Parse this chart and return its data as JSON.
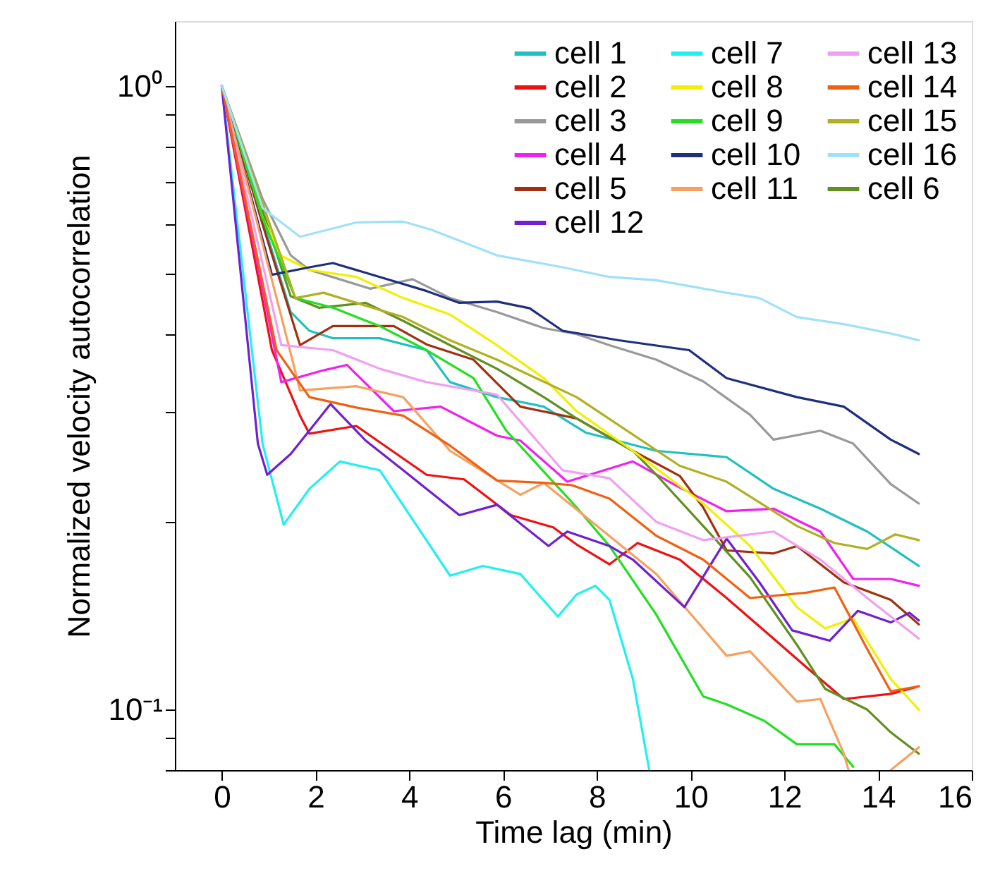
{
  "chart_data": {
    "type": "line",
    "xlabel": "Time lag (min)",
    "ylabel": "Normalized velocity autocorrelation",
    "log": "y",
    "grid": false,
    "legend": "top right",
    "line_style": "solid",
    "marker": "none",
    "xlim": [
      -1,
      16
    ],
    "xticks": [
      0,
      2,
      4,
      6,
      8,
      10,
      12,
      14,
      16
    ],
    "ylim": [
      0.08,
      1.27
    ],
    "yticks": [
      {
        "value": 0.08,
        "label": null
      },
      {
        "value": 0.09,
        "label": null
      },
      {
        "value": 0.1,
        "label": "10⁻¹"
      },
      {
        "value": 0.2,
        "label": null
      },
      {
        "value": 0.3,
        "label": null
      },
      {
        "value": 0.4,
        "label": null
      },
      {
        "value": 0.5,
        "label": null
      },
      {
        "value": 0.6,
        "label": null
      },
      {
        "value": 0.7,
        "label": null
      },
      {
        "value": 0.8,
        "label": null
      },
      {
        "value": 0.9,
        "label": null
      },
      {
        "value": 1,
        "label": "10⁰"
      }
    ],
    "series": [
      {
        "name": "cell 1",
        "color": "#20c0c0",
        "x": [
          0,
          1.47,
          1.87,
          2.37,
          3.37,
          4.37,
          4.87,
          5.87,
          6.87,
          7.77,
          9.27,
          10.77,
          11.77,
          12.77,
          13.77,
          14.87
        ],
        "values": [
          1,
          0.434,
          0.405,
          0.394,
          0.394,
          0.377,
          0.335,
          0.317,
          0.306,
          0.278,
          0.26,
          0.254,
          0.226,
          0.21,
          0.193,
          0.17
        ]
      },
      {
        "name": "cell 2",
        "color": "#f01010",
        "x": [
          0,
          1.07,
          1.67,
          1.87,
          2.87,
          4.37,
          5.17,
          6.17,
          7.07,
          7.57,
          8.27,
          8.87,
          9.77,
          10.77,
          11.77,
          12.47,
          13.27,
          14.27,
          14.87
        ],
        "values": [
          1,
          0.377,
          0.296,
          0.277,
          0.285,
          0.238,
          0.234,
          0.205,
          0.196,
          0.184,
          0.171,
          0.185,
          0.174,
          0.151,
          0.13,
          0.117,
          0.104,
          0.106,
          0.109
        ]
      },
      {
        "name": "cell 3",
        "color": "#999999",
        "x": [
          0,
          0.87,
          1.47,
          1.87,
          3.17,
          4.07,
          4.87,
          5.87,
          6.87,
          7.57,
          8.27,
          9.27,
          10.27,
          11.27,
          11.77,
          12.77,
          13.47,
          14.27,
          14.87
        ],
        "values": [
          1,
          0.659,
          0.535,
          0.507,
          0.473,
          0.49,
          0.457,
          0.434,
          0.409,
          0.4,
          0.384,
          0.364,
          0.336,
          0.297,
          0.271,
          0.28,
          0.267,
          0.23,
          0.214
        ]
      },
      {
        "name": "cell 4",
        "color": "#f020f0",
        "x": [
          0,
          1.27,
          2.17,
          2.67,
          3.67,
          4.67,
          5.87,
          6.37,
          7.37,
          8.77,
          9.77,
          10.77,
          11.77,
          12.77,
          13.47,
          14.27,
          14.87
        ],
        "values": [
          1,
          0.335,
          0.35,
          0.357,
          0.301,
          0.306,
          0.275,
          0.27,
          0.232,
          0.25,
          0.227,
          0.208,
          0.21,
          0.193,
          0.162,
          0.162,
          0.158
        ]
      },
      {
        "name": "cell 5",
        "color": "#a03010",
        "x": [
          0,
          0.87,
          1.67,
          2.37,
          3.67,
          4.37,
          5.37,
          6.37,
          7.57,
          8.77,
          9.77,
          10.27,
          10.77,
          11.77,
          12.27,
          13.27,
          14.27,
          14.87
        ],
        "values": [
          1,
          0.6,
          0.384,
          0.412,
          0.412,
          0.385,
          0.364,
          0.306,
          0.293,
          0.26,
          0.237,
          0.211,
          0.18,
          0.178,
          0.183,
          0.16,
          0.15,
          0.137
        ]
      },
      {
        "name": "cell 6",
        "color": "#609020",
        "x": [
          0,
          1.47,
          2.07,
          3.07,
          3.87,
          4.87,
          5.87,
          6.87,
          7.57,
          8.77,
          9.27,
          10.27,
          11.27,
          12.27,
          12.87,
          13.77,
          14.27,
          14.87
        ],
        "values": [
          1,
          0.46,
          0.441,
          0.449,
          0.42,
          0.384,
          0.352,
          0.317,
          0.293,
          0.26,
          0.238,
          0.197,
          0.163,
          0.127,
          0.108,
          0.1,
          0.092,
          0.085
        ]
      },
      {
        "name": "cell 7",
        "color": "#20f0f0",
        "x": [
          0,
          0.87,
          1.32,
          1.87,
          2.52,
          3.37,
          4.87,
          5.57,
          6.37,
          7.17,
          7.57,
          7.97,
          8.27,
          8.77,
          9.12
        ],
        "values": [
          1,
          0.267,
          0.198,
          0.226,
          0.25,
          0.242,
          0.164,
          0.17,
          0.165,
          0.141,
          0.153,
          0.158,
          0.15,
          0.112,
          0.08
        ]
      },
      {
        "name": "cell 8",
        "color": "#f0f000",
        "x": [
          0,
          0.87,
          1.27,
          1.87,
          2.87,
          3.87,
          4.87,
          5.87,
          6.87,
          7.57,
          8.77,
          10.27,
          11.27,
          12.27,
          12.87,
          13.47,
          14.27,
          14.87
        ],
        "values": [
          1,
          0.614,
          0.534,
          0.507,
          0.494,
          0.457,
          0.43,
          0.384,
          0.34,
          0.301,
          0.26,
          0.214,
          0.183,
          0.146,
          0.135,
          0.14,
          0.112,
          0.1
        ]
      },
      {
        "name": "cell 9",
        "color": "#20e020",
        "x": [
          0,
          0.87,
          1.57,
          2.37,
          3.37,
          4.37,
          5.37,
          6.07,
          7.57,
          8.27,
          9.27,
          10.27,
          10.77,
          11.57,
          12.27,
          13.07,
          13.47
        ],
        "values": [
          1,
          0.614,
          0.457,
          0.441,
          0.412,
          0.377,
          0.34,
          0.28,
          0.211,
          0.183,
          0.142,
          0.105,
          0.102,
          0.096,
          0.088,
          0.088,
          0.081
        ]
      },
      {
        "name": "cell 10",
        "color": "#1f2f7f",
        "x": [
          0,
          1.07,
          1.87,
          2.37,
          3.37,
          4.37,
          5.07,
          5.87,
          6.57,
          7.27,
          8.47,
          9.97,
          10.77,
          12.27,
          13.27,
          14.27,
          14.87
        ],
        "values": [
          1,
          0.498,
          0.512,
          0.52,
          0.494,
          0.469,
          0.449,
          0.451,
          0.44,
          0.405,
          0.391,
          0.377,
          0.34,
          0.317,
          0.306,
          0.271,
          0.257
        ]
      },
      {
        "name": "cell 11",
        "color": "#f8a060",
        "x": [
          0,
          1.27,
          1.67,
          2.87,
          3.87,
          4.87,
          6.37,
          6.87,
          9.27,
          10.77,
          11.27,
          12.27,
          12.77,
          13.27,
          13.37,
          13.8,
          14.27,
          14.87
        ],
        "values": [
          1,
          0.427,
          0.325,
          0.33,
          0.317,
          0.26,
          0.221,
          0.231,
          0.165,
          0.122,
          0.124,
          0.103,
          0.104,
          0.085,
          0.08,
          null,
          0.08,
          0.087
        ]
      },
      {
        "name": "cell 12",
        "color": "#7020d0",
        "x": [
          0,
          0.77,
          0.97,
          1.47,
          2.32,
          3.07,
          3.87,
          5.07,
          5.87,
          6.97,
          7.37,
          8.27,
          8.77,
          9.87,
          10.77,
          11.47,
          12.17,
          12.97,
          13.57,
          14.27,
          14.67,
          14.87
        ],
        "values": [
          1,
          0.267,
          0.238,
          0.257,
          0.309,
          0.27,
          0.242,
          0.205,
          0.213,
          0.183,
          0.193,
          0.183,
          0.174,
          0.146,
          0.188,
          0.16,
          0.134,
          0.129,
          0.144,
          0.138,
          0.143,
          0.139
        ]
      },
      {
        "name": "cell 13",
        "color": "#f0a0f0",
        "x": [
          0,
          1.27,
          2.37,
          3.37,
          4.37,
          5.87,
          7.27,
          8.27,
          9.27,
          10.27,
          11.77,
          12.77,
          13.77,
          14.87
        ],
        "values": [
          1,
          0.384,
          0.377,
          0.352,
          0.335,
          0.32,
          0.242,
          0.235,
          0.2,
          0.187,
          0.193,
          0.174,
          0.151,
          0.13
        ]
      },
      {
        "name": "cell 14",
        "color": "#f06010",
        "x": [
          0,
          1.17,
          1.87,
          2.87,
          3.87,
          4.87,
          5.87,
          6.87,
          7.47,
          8.27,
          9.27,
          10.27,
          11.27,
          12.47,
          13.07,
          13.77,
          14.27,
          14.87
        ],
        "values": [
          1,
          0.377,
          0.317,
          0.305,
          0.296,
          0.265,
          0.233,
          0.231,
          0.229,
          0.218,
          0.19,
          0.174,
          0.151,
          0.154,
          0.157,
          0.125,
          0.107,
          0.109
        ]
      },
      {
        "name": "cell 15",
        "color": "#b0b020",
        "x": [
          0,
          1.57,
          2.17,
          2.87,
          3.87,
          4.87,
          5.87,
          7.57,
          9.77,
          10.77,
          12.27,
          13.07,
          13.77,
          14.37,
          14.87
        ],
        "values": [
          1,
          0.457,
          0.466,
          0.449,
          0.426,
          0.391,
          0.364,
          0.317,
          0.246,
          0.232,
          0.197,
          0.185,
          0.181,
          0.191,
          0.187
        ]
      },
      {
        "name": "cell 16",
        "color": "#a0e0f8",
        "x": [
          0,
          0.87,
          1.67,
          2.87,
          3.87,
          4.47,
          5.87,
          7.27,
          8.27,
          9.27,
          10.77,
          11.47,
          12.27,
          13.27,
          14.27,
          14.87
        ],
        "values": [
          1,
          0.637,
          0.573,
          0.604,
          0.606,
          0.588,
          0.535,
          0.512,
          0.494,
          0.488,
          0.466,
          0.457,
          0.426,
          0.415,
          0.401,
          0.391
        ]
      }
    ]
  }
}
